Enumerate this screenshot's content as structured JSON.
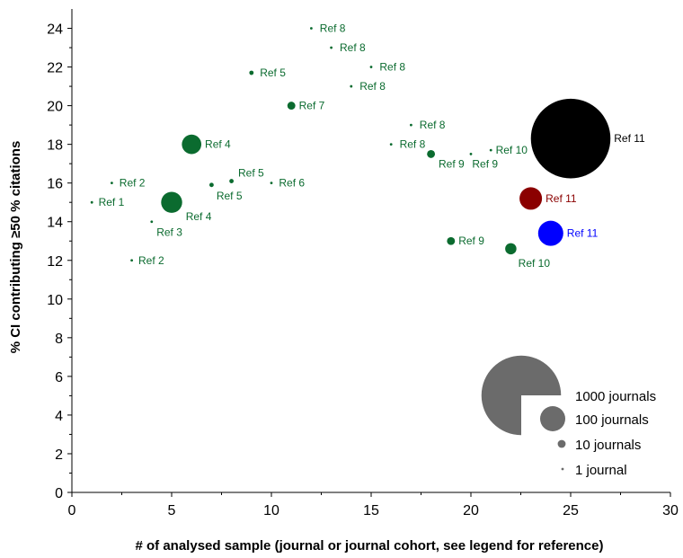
{
  "chart_data": {
    "type": "scatter",
    "title": "",
    "xlabel": "# of analysed sample (journal or journal cohort, see legend for reference)",
    "ylabel": "% CI contributing ≥50 % citations",
    "xlim": [
      0,
      30
    ],
    "ylim": [
      0,
      25
    ],
    "xticks": [
      "0",
      "5",
      "10",
      "15",
      "20",
      "25",
      "30"
    ],
    "yticks": [
      "0",
      "2",
      "4",
      "6",
      "8",
      "10",
      "12",
      "14",
      "16",
      "18",
      "20",
      "22",
      "24"
    ],
    "grid": false,
    "colors": {
      "green": "#0b6b2f",
      "black": "#000000",
      "darkred": "#8b0000",
      "blue": "#0000ff",
      "legend": "#6b6b6b"
    },
    "points": [
      {
        "x": 1,
        "y": 15,
        "journals": 1,
        "label": "Ref 1",
        "color": "green"
      },
      {
        "x": 2,
        "y": 16,
        "journals": 1,
        "label": "Ref 2",
        "color": "green"
      },
      {
        "x": 3,
        "y": 12,
        "journals": 1,
        "label": "Ref 2",
        "color": "green"
      },
      {
        "x": 4,
        "y": 14,
        "journals": 1,
        "label": "Ref 3",
        "color": "green"
      },
      {
        "x": 5,
        "y": 15,
        "journals": 70,
        "label": "Ref 4",
        "color": "green"
      },
      {
        "x": 6,
        "y": 18,
        "journals": 60,
        "label": "Ref 4",
        "color": "green"
      },
      {
        "x": 7,
        "y": 15.9,
        "journals": 3,
        "label": "Ref 5",
        "color": "green"
      },
      {
        "x": 8,
        "y": 16.1,
        "journals": 3,
        "label": "Ref 5",
        "color": "green"
      },
      {
        "x": 9,
        "y": 21.7,
        "journals": 3,
        "label": "Ref 5",
        "color": "green"
      },
      {
        "x": 10,
        "y": 16,
        "journals": 1,
        "label": "Ref 6",
        "color": "green"
      },
      {
        "x": 11,
        "y": 20,
        "journals": 10,
        "label": "Ref 7",
        "color": "green"
      },
      {
        "x": 12,
        "y": 24,
        "journals": 1,
        "label": "Ref 8",
        "color": "green"
      },
      {
        "x": 13,
        "y": 23,
        "journals": 1,
        "label": "Ref 8",
        "color": "green"
      },
      {
        "x": 14,
        "y": 21,
        "journals": 1,
        "label": "Ref 8",
        "color": "green"
      },
      {
        "x": 15,
        "y": 22,
        "journals": 1,
        "label": "Ref 8",
        "color": "green"
      },
      {
        "x": 16,
        "y": 18,
        "journals": 1,
        "label": "Ref 8",
        "color": "green"
      },
      {
        "x": 17,
        "y": 19,
        "journals": 1,
        "label": "Ref 8",
        "color": "green"
      },
      {
        "x": 18,
        "y": 17.5,
        "journals": 10,
        "label": "Ref 9",
        "color": "green"
      },
      {
        "x": 19,
        "y": 13,
        "journals": 10,
        "label": "Ref 9",
        "color": "green"
      },
      {
        "x": 20,
        "y": 17.5,
        "journals": 1,
        "label": "Ref 9",
        "color": "green"
      },
      {
        "x": 21,
        "y": 17.7,
        "journals": 1,
        "label": "Ref 10",
        "color": "green"
      },
      {
        "x": 22,
        "y": 12.6,
        "journals": 20,
        "label": "Ref 10",
        "color": "green"
      },
      {
        "x": 23,
        "y": 15.2,
        "journals": 80,
        "label": "Ref 11",
        "color": "darkred"
      },
      {
        "x": 24,
        "y": 13.4,
        "journals": 100,
        "label": "Ref 11",
        "color": "blue"
      },
      {
        "x": 25,
        "y": 18.3,
        "journals": 1000,
        "label": "Ref 11",
        "color": "black"
      }
    ],
    "legend": {
      "placement": "bottom-right",
      "items": [
        {
          "label": "1000 journals",
          "journals": 1000
        },
        {
          "label": "100 journals",
          "journals": 100
        },
        {
          "label": "10 journals",
          "journals": 10
        },
        {
          "label": "1 journal",
          "journals": 1
        }
      ]
    }
  }
}
